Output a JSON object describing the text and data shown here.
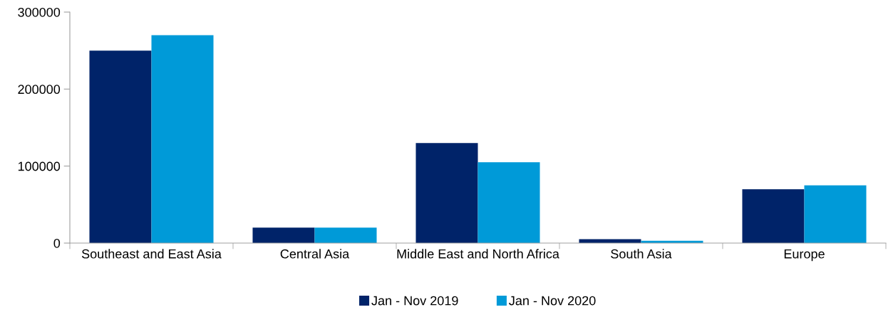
{
  "chart_data": {
    "type": "bar",
    "categories": [
      "Southeast and East Asia",
      "Central Asia",
      "Middle East and North Africa",
      "South Asia",
      "Europe"
    ],
    "series": [
      {
        "name": "Jan - Nov 2019",
        "color": "#002369",
        "values": [
          250000,
          20000,
          130000,
          5000,
          70000
        ]
      },
      {
        "name": "Jan - Nov 2020",
        "color": "#009ad8",
        "values": [
          270000,
          20000,
          105000,
          3000,
          75000
        ]
      }
    ],
    "ylim": [
      0,
      300000
    ],
    "yticks": [
      0,
      100000,
      200000,
      300000
    ],
    "grid": false,
    "legend": "bottom"
  }
}
